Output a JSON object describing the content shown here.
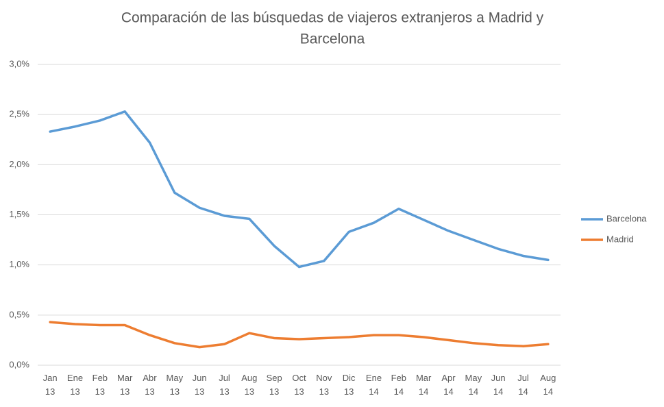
{
  "chart_data": {
    "type": "line",
    "title": [
      "Comparación de las búsquedas de viajeros extranjeros a Madrid y",
      "Barcelona"
    ],
    "categories": [
      "Jan 13",
      "Ene 13",
      "Feb 13",
      "Mar 13",
      "Abr 13",
      "May 13",
      "Jun 13",
      "Jul 13",
      "Aug 13",
      "Sep 13",
      "Oct 13",
      "Nov 13",
      "Dic 13",
      "Ene 14",
      "Feb 14",
      "Mar 14",
      "Apr 14",
      "May 14",
      "Jun 14",
      "Jul 14",
      "Aug 14"
    ],
    "series": [
      {
        "name": "Barcelona",
        "color": "#5b9bd5",
        "values": [
          2.33,
          2.38,
          2.44,
          2.53,
          2.22,
          1.72,
          1.57,
          1.49,
          1.46,
          1.19,
          0.98,
          1.04,
          1.33,
          1.42,
          1.56,
          1.45,
          1.34,
          1.25,
          1.16,
          1.09,
          1.05
        ]
      },
      {
        "name": "Madrid",
        "color": "#ed7d31",
        "values": [
          0.43,
          0.41,
          0.4,
          0.4,
          0.3,
          0.22,
          0.18,
          0.21,
          0.32,
          0.27,
          0.26,
          0.27,
          0.28,
          0.3,
          0.3,
          0.28,
          0.25,
          0.22,
          0.2,
          0.19,
          0.21
        ]
      }
    ],
    "ylim": [
      0,
      3
    ],
    "yticks": [
      {
        "value": 0,
        "label": "0,0%"
      },
      {
        "value": 0.5,
        "label": "0,5%"
      },
      {
        "value": 1,
        "label": "1,0%"
      },
      {
        "value": 1.5,
        "label": "1,5%"
      },
      {
        "value": 2,
        "label": "2,0%"
      },
      {
        "value": 2.5,
        "label": "2,5%"
      },
      {
        "value": 3,
        "label": "3,0%"
      }
    ],
    "grid": true,
    "legend": "right"
  }
}
